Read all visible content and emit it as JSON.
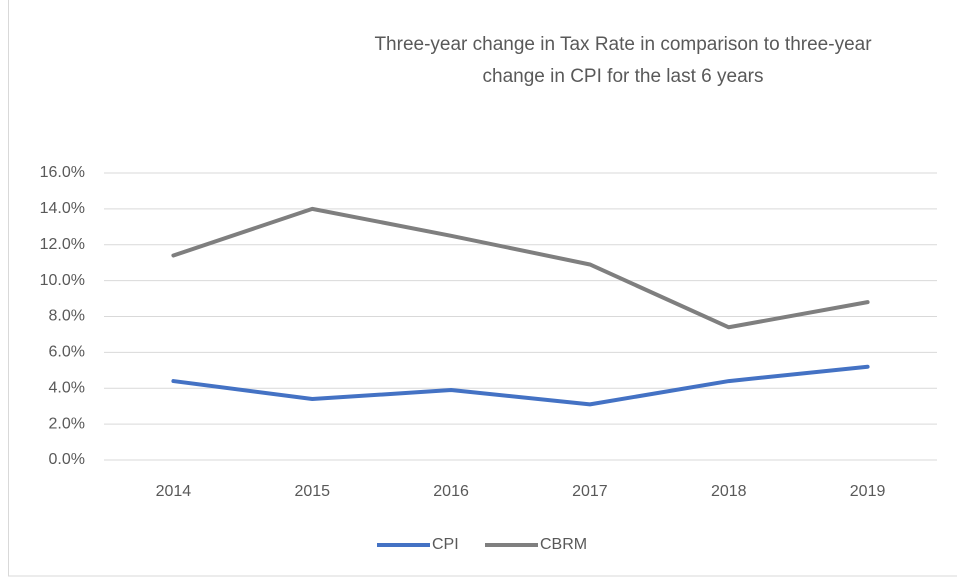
{
  "chart_data": {
    "type": "line",
    "title": [
      "Three-year change in Tax Rate in comparison to three-year",
      "change in CPI for the last 6 years"
    ],
    "categories": [
      "2014",
      "2015",
      "2016",
      "2017",
      "2018",
      "2019"
    ],
    "series": [
      {
        "name": "CPI",
        "color": "#4472c4",
        "values": [
          4.4,
          3.4,
          3.9,
          3.1,
          4.4,
          5.2
        ]
      },
      {
        "name": "CBRM",
        "color": "#7f7f7f",
        "values": [
          11.4,
          14.0,
          12.5,
          10.9,
          7.4,
          8.8
        ]
      }
    ],
    "ylim": [
      0,
      16
    ],
    "yticks": [
      {
        "value": 0,
        "label": "0.0%"
      },
      {
        "value": 2,
        "label": "2.0%"
      },
      {
        "value": 4,
        "label": "4.0%"
      },
      {
        "value": 6,
        "label": "6.0%"
      },
      {
        "value": 8,
        "label": "8.0%"
      },
      {
        "value": 10,
        "label": "10.0%"
      },
      {
        "value": 12,
        "label": "12.0%"
      },
      {
        "value": 14,
        "label": "14.0%"
      },
      {
        "value": 16,
        "label": "16.0%"
      }
    ],
    "grid": true,
    "legend": "bottom"
  }
}
